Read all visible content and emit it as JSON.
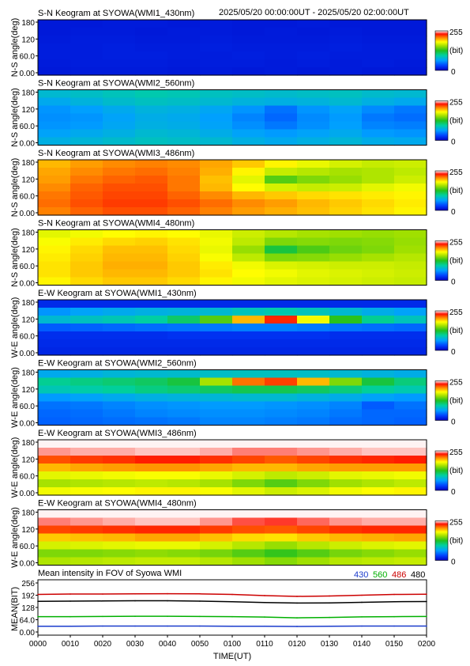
{
  "header": {
    "time_range": "2025/05/20 00:00:00UT - 2025/05/20 02:00:00UT"
  },
  "colors": {
    "wavelength_430": "#1a3bcc",
    "wavelength_560": "#00b000",
    "wavelength_486": "#cc0000",
    "wavelength_480": "#000000"
  },
  "chart_data": [
    {
      "type": "heatmap",
      "title": "S-N Keogram at SYOWA(WMI1_430nm)",
      "ylabel": "N-S angle(deg)",
      "yticks": [
        "180",
        "120",
        "60.0",
        "0.00"
      ],
      "ylim": [
        0,
        180
      ],
      "colorbar": {
        "max_label": "255",
        "unit_label": "(bit)",
        "min_label": "0",
        "range": [
          0,
          255
        ]
      },
      "values": [
        [
          12,
          12,
          13,
          13,
          12,
          13,
          12,
          12,
          13,
          12,
          12,
          12
        ],
        [
          12,
          13,
          13,
          12,
          13,
          13,
          12,
          13,
          12,
          13,
          12,
          12
        ],
        [
          13,
          14,
          14,
          13,
          13,
          14,
          13,
          13,
          13,
          14,
          13,
          13
        ],
        [
          14,
          14,
          15,
          14,
          14,
          15,
          14,
          14,
          14,
          15,
          14,
          14
        ],
        [
          14,
          14,
          15,
          15,
          14,
          14,
          15,
          14,
          15,
          14,
          14,
          14
        ],
        [
          13,
          14,
          14,
          14,
          13,
          14,
          14,
          13,
          14,
          13,
          14,
          13
        ],
        [
          12,
          13,
          13,
          13,
          12,
          13,
          12,
          13,
          12,
          13,
          12,
          12
        ]
      ]
    },
    {
      "type": "heatmap",
      "title": "S-N Keogram at SYOWA(WMI2_560nm)",
      "ylabel": "N-S angle(deg)",
      "yticks": [
        "180",
        "120",
        "60.0",
        "0.00"
      ],
      "ylim": [
        0,
        180
      ],
      "colorbar": {
        "max_label": "255",
        "unit_label": "(bit)",
        "min_label": "0",
        "range": [
          0,
          255
        ]
      },
      "values": [
        [
          80,
          84,
          88,
          92,
          90,
          86,
          84,
          82,
          84,
          86,
          82,
          80
        ],
        [
          70,
          76,
          82,
          86,
          84,
          80,
          76,
          74,
          76,
          80,
          74,
          70
        ],
        [
          60,
          64,
          70,
          76,
          74,
          68,
          60,
          48,
          60,
          66,
          56,
          50
        ],
        [
          58,
          60,
          66,
          72,
          70,
          64,
          54,
          44,
          56,
          62,
          50,
          46
        ],
        [
          60,
          62,
          68,
          74,
          72,
          66,
          58,
          50,
          58,
          64,
          54,
          52
        ],
        [
          66,
          70,
          74,
          80,
          78,
          72,
          66,
          62,
          66,
          70,
          62,
          60
        ],
        [
          74,
          78,
          82,
          86,
          84,
          80,
          74,
          70,
          74,
          78,
          72,
          70
        ]
      ]
    },
    {
      "type": "heatmap",
      "title": "S-N Keogram at SYOWA(WMI3_486nm)",
      "ylabel": "N-S angle(deg)",
      "yticks": [
        "180",
        "120",
        "60.0",
        "0.00"
      ],
      "ylim": [
        0,
        180
      ],
      "colorbar": {
        "max_label": "255",
        "unit_label": "(bit)",
        "min_label": "0",
        "range": [
          0,
          255
        ]
      },
      "values": [
        [
          200,
          206,
          210,
          212,
          210,
          204,
          196,
          186,
          178,
          172,
          168,
          170
        ],
        [
          204,
          210,
          214,
          216,
          212,
          202,
          186,
          168,
          164,
          160,
          162,
          166
        ],
        [
          206,
          214,
          218,
          220,
          214,
          198,
          176,
          140,
          150,
          156,
          162,
          170
        ],
        [
          210,
          218,
          222,
          222,
          214,
          200,
          184,
          172,
          168,
          170,
          176,
          180
        ],
        [
          214,
          220,
          224,
          224,
          218,
          210,
          200,
          196,
          192,
          190,
          188,
          186
        ],
        [
          216,
          222,
          226,
          226,
          222,
          216,
          210,
          206,
          200,
          196,
          192,
          188
        ],
        [
          212,
          218,
          222,
          222,
          218,
          212,
          206,
          202,
          198,
          194,
          190,
          186
        ]
      ]
    },
    {
      "type": "heatmap",
      "title": "S-N Keogram at SYOWA(WMI4_480nm)",
      "ylabel": "N-S angle(deg)",
      "yticks": [
        "180",
        "120",
        "60.0",
        "0.00"
      ],
      "ylim": [
        0,
        180
      ],
      "colorbar": {
        "max_label": "255",
        "unit_label": "(bit)",
        "min_label": "0",
        "range": [
          0,
          255
        ]
      },
      "values": [
        [
          176,
          180,
          184,
          186,
          184,
          178,
          170,
          164,
          160,
          158,
          156,
          158
        ],
        [
          182,
          188,
          192,
          194,
          190,
          180,
          166,
          150,
          152,
          150,
          152,
          156
        ],
        [
          186,
          192,
          198,
          198,
          192,
          178,
          156,
          120,
          138,
          146,
          150,
          158
        ],
        [
          188,
          194,
          200,
          200,
          194,
          182,
          166,
          150,
          152,
          156,
          160,
          164
        ],
        [
          190,
          196,
          202,
          202,
          196,
          188,
          180,
          174,
          172,
          170,
          170,
          168
        ],
        [
          190,
          196,
          200,
          200,
          196,
          190,
          184,
          180,
          176,
          174,
          172,
          170
        ],
        [
          186,
          192,
          196,
          196,
          192,
          186,
          180,
          176,
          174,
          172,
          170,
          168
        ]
      ]
    },
    {
      "type": "heatmap",
      "title": "E-W Keogram at SYOWA(WMI1_430nm)",
      "ylabel": "W-E angle(deg)",
      "yticks": [
        "180",
        "120",
        "60.0",
        "0.00"
      ],
      "ylim": [
        0,
        180
      ],
      "colorbar": {
        "max_label": "255",
        "unit_label": "(bit)",
        "min_label": "0",
        "range": [
          0,
          255
        ]
      },
      "values": [
        [
          20,
          20,
          20,
          20,
          20,
          20,
          20,
          20,
          20,
          20,
          20,
          20
        ],
        [
          60,
          66,
          70,
          74,
          76,
          80,
          88,
          92,
          88,
          80,
          72,
          66
        ],
        [
          80,
          86,
          90,
          96,
          110,
          140,
          200,
          230,
          180,
          130,
          100,
          88
        ],
        [
          40,
          42,
          44,
          46,
          48,
          50,
          52,
          52,
          50,
          48,
          46,
          44
        ],
        [
          22,
          22,
          22,
          22,
          24,
          24,
          24,
          24,
          24,
          22,
          22,
          22
        ],
        [
          20,
          20,
          20,
          20,
          20,
          20,
          20,
          20,
          20,
          20,
          20,
          20
        ],
        [
          18,
          18,
          18,
          18,
          18,
          18,
          18,
          18,
          18,
          18,
          18,
          18
        ]
      ]
    },
    {
      "type": "heatmap",
      "title": "E-W Keogram at SYOWA(WMI2_560nm)",
      "ylabel": "W-E angle(deg)",
      "yticks": [
        "180",
        "120",
        "60.0",
        "0.00"
      ],
      "ylim": [
        0,
        180
      ],
      "colorbar": {
        "max_label": "255",
        "unit_label": "(bit)",
        "min_label": "0",
        "range": [
          0,
          255
        ]
      },
      "values": [
        [
          70,
          74,
          78,
          80,
          82,
          84,
          86,
          86,
          84,
          80,
          76,
          72
        ],
        [
          100,
          104,
          108,
          112,
          120,
          160,
          215,
          225,
          200,
          150,
          120,
          106
        ],
        [
          90,
          94,
          98,
          104,
          108,
          112,
          116,
          116,
          112,
          106,
          98,
          92
        ],
        [
          62,
          66,
          70,
          74,
          76,
          78,
          80,
          80,
          76,
          72,
          66,
          62
        ],
        [
          48,
          50,
          54,
          58,
          60,
          62,
          62,
          60,
          58,
          54,
          40,
          48
        ],
        [
          44,
          46,
          50,
          54,
          56,
          58,
          58,
          56,
          54,
          50,
          44,
          44
        ],
        [
          42,
          44,
          46,
          48,
          50,
          54,
          54,
          52,
          50,
          46,
          44,
          42
        ]
      ]
    },
    {
      "type": "heatmap",
      "title": "E-W Keogram at SYOWA(WMI3_486nm)",
      "ylabel": "W-E angle(deg)",
      "yticks": [
        "180",
        "120",
        "60.0",
        "0.00"
      ],
      "ylim": [
        0,
        180
      ],
      "colorbar": {
        "max_label": "255",
        "unit_label": "(bit)",
        "min_label": "0",
        "range": [
          0,
          255
        ]
      },
      "values": [
        [
          254,
          254,
          254,
          254,
          254,
          254,
          254,
          254,
          254,
          254,
          254,
          254
        ],
        [
          246,
          248,
          248,
          250,
          250,
          248,
          244,
          244,
          246,
          248,
          250,
          250
        ],
        [
          222,
          226,
          228,
          232,
          232,
          228,
          224,
          220,
          224,
          228,
          230,
          232
        ],
        [
          200,
          204,
          206,
          208,
          208,
          204,
          200,
          200,
          204,
          206,
          206,
          206
        ],
        [
          176,
          178,
          180,
          182,
          182,
          178,
          172,
          166,
          170,
          176,
          178,
          180
        ],
        [
          160,
          162,
          164,
          166,
          164,
          160,
          150,
          140,
          150,
          158,
          162,
          166
        ],
        [
          180,
          182,
          184,
          186,
          186,
          182,
          176,
          170,
          174,
          180,
          184,
          186
        ]
      ]
    },
    {
      "type": "heatmap",
      "title": "E-W Keogram at SYOWA(WMI4_480nm)",
      "ylabel": "W-E angle(deg)",
      "yticks": [
        "180",
        "120",
        "60.0",
        "0.00"
      ],
      "ylim": [
        0,
        180
      ],
      "colorbar": {
        "max_label": "255",
        "unit_label": "(bit)",
        "min_label": "0",
        "range": [
          0,
          255
        ]
      },
      "values": [
        [
          254,
          254,
          254,
          254,
          254,
          254,
          254,
          254,
          254,
          254,
          254,
          254
        ],
        [
          244,
          246,
          248,
          250,
          250,
          246,
          240,
          238,
          242,
          246,
          248,
          248
        ],
        [
          224,
          226,
          228,
          230,
          230,
          226,
          222,
          220,
          224,
          228,
          230,
          230
        ],
        [
          196,
          198,
          200,
          204,
          204,
          198,
          192,
          190,
          196,
          200,
          202,
          204
        ],
        [
          172,
          174,
          176,
          178,
          178,
          172,
          164,
          156,
          164,
          170,
          174,
          176
        ],
        [
          150,
          150,
          152,
          154,
          152,
          148,
          140,
          132,
          140,
          148,
          152,
          156
        ],
        [
          162,
          164,
          166,
          168,
          168,
          164,
          158,
          152,
          158,
          164,
          166,
          168
        ]
      ]
    },
    {
      "type": "line",
      "title": "Mean intensity in FOV of Syowa WMI",
      "xlabel": "TIME(UT)",
      "ylabel": "MEAN(BIT)",
      "ylim": [
        0,
        256
      ],
      "yticks": [
        "256",
        "192",
        "128",
        "64.0",
        "0.00"
      ],
      "xticks": [
        "0000",
        "0010",
        "0020",
        "0030",
        "0040",
        "0050",
        "0100",
        "0110",
        "0120",
        "0130",
        "0140",
        "0150",
        "0200"
      ],
      "xlim_minutes": [
        0,
        120
      ],
      "x_minutes": [
        0,
        10,
        20,
        30,
        40,
        50,
        60,
        70,
        80,
        90,
        100,
        110,
        120
      ],
      "series": [
        {
          "name": "430",
          "color": "#1a3bcc",
          "values": [
            30,
            30,
            31,
            31,
            31,
            31,
            30,
            30,
            29,
            30,
            31,
            31,
            31
          ]
        },
        {
          "name": "560",
          "color": "#00b000",
          "values": [
            80,
            80,
            81,
            82,
            82,
            81,
            80,
            78,
            74,
            76,
            79,
            80,
            81
          ]
        },
        {
          "name": "486",
          "color": "#cc0000",
          "values": [
            196,
            198,
            198,
            199,
            200,
            199,
            196,
            190,
            186,
            188,
            192,
            196,
            197
          ]
        },
        {
          "name": "480",
          "color": "#000000",
          "values": [
            160,
            161,
            162,
            163,
            163,
            161,
            158,
            154,
            151,
            152,
            155,
            158,
            159
          ]
        }
      ]
    }
  ]
}
